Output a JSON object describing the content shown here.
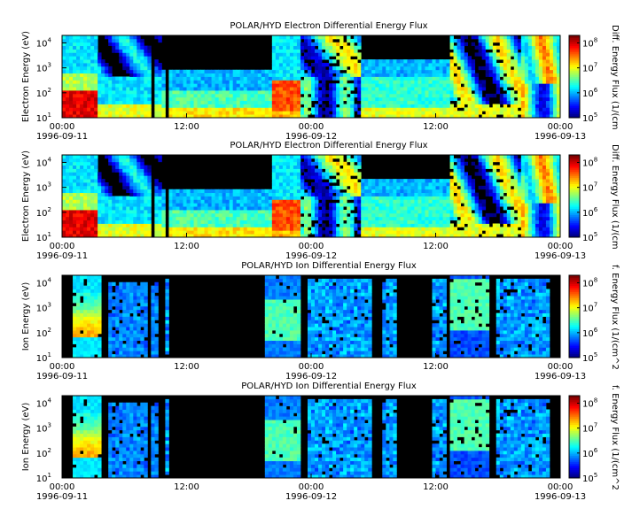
{
  "chart_data": [
    {
      "type": "heatmap",
      "title": "POLAR/HYD  Electron Differential Energy Flux",
      "ylabel": "Electron Energy (eV)",
      "colorbar_label": "Diff. Energy Flux (1/(cm",
      "y_scale": "log",
      "ylim": [
        10,
        20000
      ],
      "y_ticks": [
        "10",
        "10",
        "10",
        "10"
      ],
      "y_tick_exponents": [
        "1",
        "2",
        "3",
        "4"
      ],
      "x_ticks": [
        "00:00",
        "12:00",
        "00:00",
        "12:00",
        "00:00"
      ],
      "x_dates": [
        "1996-09-11",
        "1996-09-12",
        "1996-09-13"
      ],
      "colorbar_ticks": [
        "10",
        "10",
        "10",
        "10"
      ],
      "colorbar_exponents": [
        "5",
        "6",
        "7",
        "8"
      ],
      "clim": [
        100000,
        200000000
      ],
      "species": "electron"
    },
    {
      "type": "heatmap",
      "title": "POLAR/HYD  Electron Differential Energy Flux",
      "ylabel": "Electron Energy (eV)",
      "colorbar_label": "Diff. Energy Flux (1/(cm",
      "y_scale": "log",
      "ylim": [
        10,
        20000
      ],
      "y_ticks": [
        "10",
        "10",
        "10",
        "10"
      ],
      "y_tick_exponents": [
        "1",
        "2",
        "3",
        "4"
      ],
      "x_ticks": [
        "00:00",
        "12:00",
        "00:00",
        "12:00",
        "00:00"
      ],
      "x_dates": [
        "1996-09-11",
        "1996-09-12",
        "1996-09-13"
      ],
      "colorbar_ticks": [
        "10",
        "10",
        "10",
        "10"
      ],
      "colorbar_exponents": [
        "5",
        "6",
        "7",
        "8"
      ],
      "clim": [
        100000,
        200000000
      ],
      "species": "electron"
    },
    {
      "type": "heatmap",
      "title": "POLAR/HYD  Ion Differential Energy Flux",
      "ylabel": "Ion Energy (eV)",
      "colorbar_label": "f. Energy Flux (1/(cm^2",
      "y_scale": "log",
      "ylim": [
        10,
        20000
      ],
      "y_ticks": [
        "10",
        "10",
        "10",
        "10"
      ],
      "y_tick_exponents": [
        "1",
        "2",
        "3",
        "4"
      ],
      "x_ticks": [
        "00:00",
        "12:00",
        "00:00",
        "12:00",
        "00:00"
      ],
      "x_dates": [
        "1996-09-11",
        "1996-09-12",
        "1996-09-13"
      ],
      "colorbar_ticks": [
        "10",
        "10",
        "10",
        "10"
      ],
      "colorbar_exponents": [
        "5",
        "6",
        "7",
        "8"
      ],
      "clim": [
        100000,
        200000000
      ],
      "species": "ion"
    },
    {
      "type": "heatmap",
      "title": "POLAR/HYD  Ion Differential Energy Flux",
      "ylabel": "Ion Energy (eV)",
      "colorbar_label": "f. Energy Flux (1/(cm^2",
      "y_scale": "log",
      "ylim": [
        10,
        20000
      ],
      "y_ticks": [
        "10",
        "10",
        "10",
        "10"
      ],
      "y_tick_exponents": [
        "1",
        "2",
        "3",
        "4"
      ],
      "x_ticks": [
        "00:00",
        "12:00",
        "00:00",
        "12:00",
        "00:00"
      ],
      "x_dates": [
        "1996-09-11",
        "1996-09-12",
        "1996-09-13"
      ],
      "colorbar_ticks": [
        "10",
        "10",
        "10",
        "10"
      ],
      "colorbar_exponents": [
        "5",
        "6",
        "7",
        "8"
      ],
      "clim": [
        100000,
        200000000
      ],
      "species": "ion"
    }
  ],
  "colors": {
    "background": "#000000",
    "colormap": [
      "#00007f",
      "#0000ff",
      "#007fff",
      "#00ffff",
      "#7fff7f",
      "#ffff00",
      "#ff7f00",
      "#ff0000",
      "#7f0000"
    ]
  }
}
